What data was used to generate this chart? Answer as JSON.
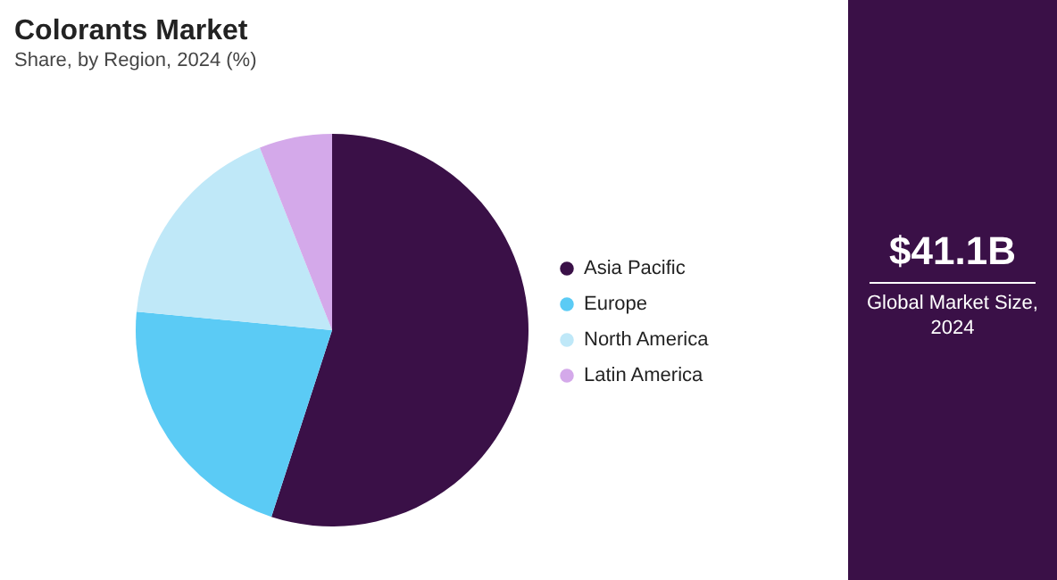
{
  "chart_data": {
    "type": "pie",
    "title": "Colorants Market",
    "subtitle": "Share, by Region, 2024 (%)",
    "categories": [
      "Asia Pacific",
      "Europe",
      "North America",
      "Latin America"
    ],
    "values": [
      55,
      21.5,
      17.5,
      6
    ],
    "colors": [
      "#3a1047",
      "#5bcbf5",
      "#bfe8f8",
      "#d4a9ea"
    ],
    "legend": "right",
    "annotations": [
      "$41.1B",
      "Global Market Size, 2024"
    ]
  }
}
